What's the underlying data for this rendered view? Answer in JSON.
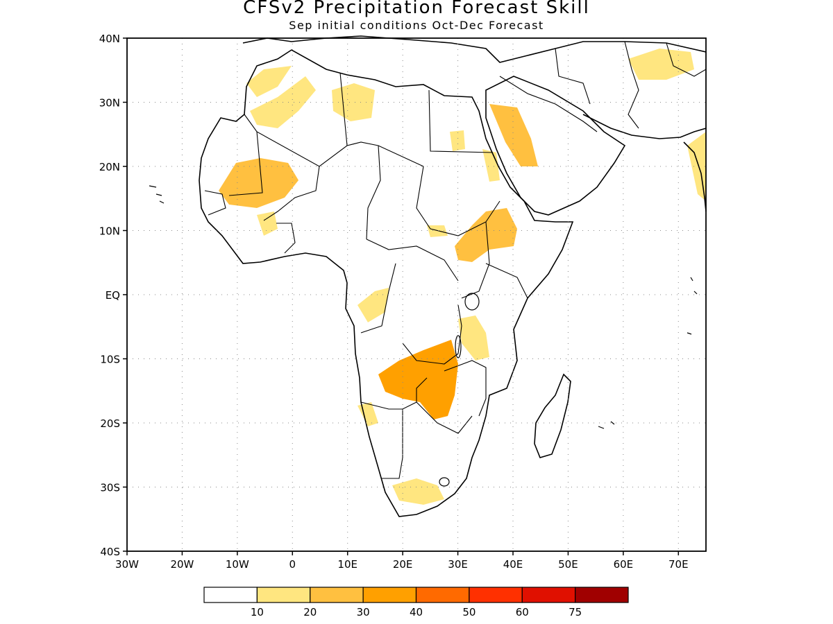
{
  "title": "CFSv2 Precipitation Forecast Skill",
  "subtitle": "Sep initial conditions  Oct-Dec Forecast",
  "axes": {
    "lat_labels": [
      "40N",
      "30N",
      "20N",
      "10N",
      "EQ",
      "10S",
      "20S",
      "30S",
      "40S"
    ],
    "lon_labels": [
      "30W",
      "20W",
      "10W",
      "0",
      "10E",
      "20E",
      "30E",
      "40E",
      "50E",
      "60E",
      "70E"
    ],
    "lon_range": [
      -30,
      75
    ],
    "lat_range": [
      -40,
      40
    ],
    "grid": "dotted"
  },
  "colorbar": {
    "thresholds": [
      "10",
      "20",
      "30",
      "40",
      "50",
      "60",
      "75"
    ],
    "colors": [
      "#ffffff",
      "#ffe680",
      "#ffc040",
      "#ffa000",
      "#ff6a00",
      "#ff3000",
      "#e01000",
      "#a00000"
    ]
  },
  "map": {
    "region": "Africa",
    "skill_areas": [
      {
        "name": "northwest-africa-atlas",
        "level": 1
      },
      {
        "name": "algeria-desert",
        "level": 1
      },
      {
        "name": "libya-west",
        "level": 1
      },
      {
        "name": "mauritania-mali",
        "level": 2
      },
      {
        "name": "west-africa-coast",
        "level": 1
      },
      {
        "name": "chad-north",
        "level": 1
      },
      {
        "name": "egypt-red-sea",
        "level": 1
      },
      {
        "name": "arabia-west",
        "level": 2
      },
      {
        "name": "iran-afghanistan",
        "level": 1
      },
      {
        "name": "ethiopia-highlands",
        "level": 2
      },
      {
        "name": "south-sudan",
        "level": 1
      },
      {
        "name": "congo-gabon",
        "level": 1
      },
      {
        "name": "tanzania-kenya",
        "level": 1
      },
      {
        "name": "zambia-angola",
        "level": 3
      },
      {
        "name": "angola-coast",
        "level": 1
      },
      {
        "name": "south-africa-coast",
        "level": 1
      },
      {
        "name": "india-west",
        "level": 1
      }
    ]
  }
}
